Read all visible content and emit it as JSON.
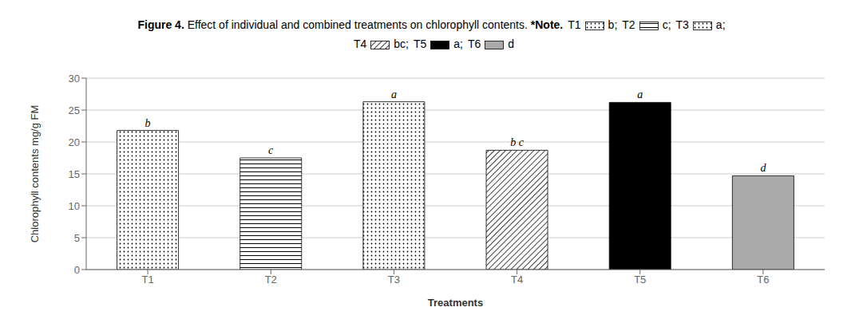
{
  "chart_data": {
    "type": "bar",
    "title": "Figure 4.",
    "subtitle": "Effect of individual and combined treatments on chlorophyll contents.",
    "xlabel": "Treatments",
    "ylabel": "Chlorophyll  contents  mg/g FM",
    "categories": [
      "T1",
      "T2",
      "T3",
      "T4",
      "T5",
      "T6"
    ],
    "values": [
      21.8,
      17.5,
      26.3,
      18.7,
      26.2,
      14.7
    ],
    "colors": [
      "white",
      "white",
      "white",
      "white",
      "black",
      "#aaaaaa"
    ],
    "ylim": [
      0,
      30
    ],
    "yticks": [
      0,
      5,
      10,
      15,
      20,
      25,
      30
    ],
    "grid": true,
    "annotations": {
      "bar_labels": [
        "b",
        "c",
        "a",
        "b c",
        "a",
        "d"
      ],
      "note_title": "*Note.",
      "note": [
        "b;",
        "c;",
        "a;",
        "bc;",
        "a;",
        "d"
      ]
    }
  }
}
